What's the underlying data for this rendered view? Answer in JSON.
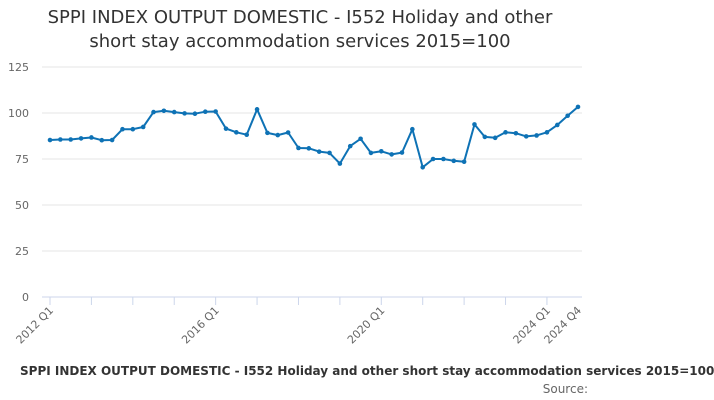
{
  "chart_data": {
    "type": "line",
    "title_lines": [
      "SPPI INDEX OUTPUT DOMESTIC - I552 Holiday and other",
      "short stay accommodation services 2015=100"
    ],
    "xlabel": "",
    "ylabel": "",
    "ylim": [
      0,
      125
    ],
    "yticks": [
      0,
      25,
      50,
      75,
      100,
      125
    ],
    "grid": true,
    "legend_position": "bottom",
    "x_tick_labels": [
      {
        "index": 0,
        "label": "2012 Q1"
      },
      {
        "index": 16,
        "label": "2016 Q1"
      },
      {
        "index": 32,
        "label": "2020 Q1"
      },
      {
        "index": 48,
        "label": "2024 Q1"
      },
      {
        "index": 51,
        "label": "2024 Q4"
      }
    ],
    "series": [
      {
        "name": "SPPI INDEX OUTPUT DOMESTIC - I552 Holiday and other short stay accommodation services 2015=100",
        "color": "#0e72b5",
        "x": [
          "2012 Q1",
          "2012 Q2",
          "2012 Q3",
          "2012 Q4",
          "2013 Q1",
          "2013 Q2",
          "2013 Q3",
          "2013 Q4",
          "2014 Q1",
          "2014 Q2",
          "2014 Q3",
          "2014 Q4",
          "2015 Q1",
          "2015 Q2",
          "2015 Q3",
          "2015 Q4",
          "2016 Q1",
          "2016 Q2",
          "2016 Q3",
          "2016 Q4",
          "2017 Q1",
          "2017 Q2",
          "2017 Q3",
          "2017 Q4",
          "2018 Q1",
          "2018 Q2",
          "2018 Q3",
          "2018 Q4",
          "2019 Q1",
          "2019 Q2",
          "2019 Q3",
          "2019 Q4",
          "2020 Q1",
          "2020 Q2",
          "2020 Q3",
          "2020 Q4",
          "2021 Q1",
          "2021 Q2",
          "2021 Q3",
          "2021 Q4",
          "2022 Q1",
          "2022 Q2",
          "2022 Q3",
          "2022 Q4",
          "2023 Q1",
          "2023 Q2",
          "2023 Q3",
          "2023 Q4",
          "2024 Q1",
          "2024 Q2",
          "2024 Q3",
          "2024 Q4"
        ],
        "values": [
          85.3,
          85.6,
          85.6,
          86.2,
          86.7,
          85.2,
          85.3,
          91.2,
          91.2,
          92.4,
          100.5,
          101.2,
          100.5,
          99.8,
          99.6,
          100.7,
          100.8,
          91.5,
          89.5,
          88.2,
          102.0,
          89.2,
          88.0,
          89.4,
          81.0,
          80.8,
          79.0,
          78.3,
          72.5,
          82.0,
          86.0,
          78.3,
          79.2,
          77.5,
          78.5,
          91.2,
          70.5,
          75.0,
          75.0,
          74.0,
          73.5,
          93.8,
          87.0,
          86.5,
          89.5,
          89.0,
          87.3,
          87.8,
          89.5,
          93.5,
          98.5,
          103.3
        ]
      }
    ],
    "source_label": "Source:"
  }
}
